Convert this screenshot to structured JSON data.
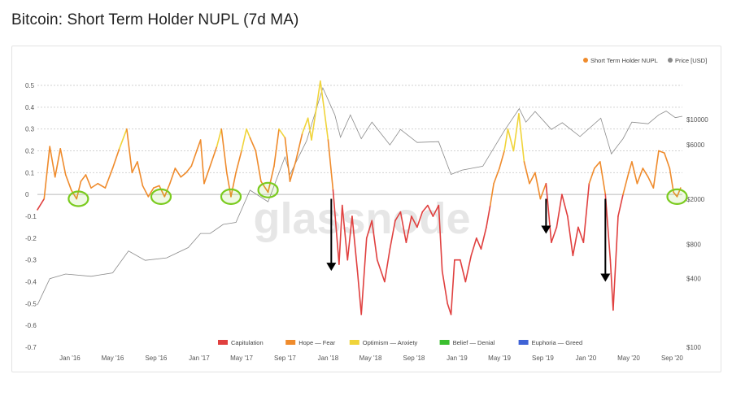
{
  "page": {
    "title": "Bitcoin: Short Term Holder NUPL (7d MA)"
  },
  "watermark": "glassnode",
  "colors": {
    "capitulation": "#e0403f",
    "hope_fear": "#ef8b2c",
    "optimism_anxiety": "#f0d43a",
    "belief_denial": "#3bbf2f",
    "euphoria_greed": "#3f63d6",
    "price": "#8a8a8a",
    "circle": "#7acb1e",
    "arrow": "#000000"
  },
  "chart_data": {
    "type": "line",
    "title": "Bitcoin: Short Term Holder NUPL (7d MA)",
    "x_tick_labels": [
      "Jan '16",
      "May '16",
      "Sep '16",
      "Jan '17",
      "May '17",
      "Sep '17",
      "Jan '18",
      "May '18",
      "Sep '18",
      "Jan '19",
      "May '19",
      "Sep '19",
      "Jan '20",
      "May '20",
      "Sep '20"
    ],
    "x_range": [
      "2015-10-01",
      "2020-09-30"
    ],
    "y_left": {
      "ticks": [
        "0.5",
        "0.4",
        "0.3",
        "0.2",
        "0.1",
        "0",
        "-0.1",
        "-0.2",
        "-0.3",
        "-0.4",
        "-0.5",
        "-0.6",
        "-0.7"
      ],
      "ylim": [
        -0.7,
        0.5
      ]
    },
    "y_right": {
      "scale": "log",
      "ticks": [
        "$10000",
        "$6000",
        "$2000",
        "$800",
        "$400",
        "$100"
      ],
      "unit": "Price [USD]",
      "ylim": [
        100,
        20000
      ]
    },
    "legend_top": [
      "Short Term Holder NUPL",
      "Price [USD]"
    ],
    "legend_bottom": [
      "Capitulation",
      "Hope — Fear",
      "Optimism — Anxiety",
      "Belief — Denial",
      "Euphoria — Greed"
    ],
    "series": [
      {
        "name": "Short Term Holder NUPL",
        "axis": "left",
        "points": [
          [
            "2015-10-01",
            -0.07
          ],
          [
            "2015-10-20",
            -0.02
          ],
          [
            "2015-11-05",
            0.22
          ],
          [
            "2015-11-20",
            0.08
          ],
          [
            "2015-12-05",
            0.21
          ],
          [
            "2015-12-20",
            0.09
          ],
          [
            "2016-01-05",
            0.02
          ],
          [
            "2016-01-20",
            -0.02
          ],
          [
            "2016-02-01",
            0.06
          ],
          [
            "2016-02-15",
            0.09
          ],
          [
            "2016-03-01",
            0.03
          ],
          [
            "2016-03-20",
            0.05
          ],
          [
            "2016-04-10",
            0.03
          ],
          [
            "2016-05-01",
            0.12
          ],
          [
            "2016-05-20",
            0.21
          ],
          [
            "2016-06-10",
            0.3
          ],
          [
            "2016-06-25",
            0.1
          ],
          [
            "2016-07-10",
            0.15
          ],
          [
            "2016-07-25",
            0.04
          ],
          [
            "2016-08-10",
            -0.01
          ],
          [
            "2016-08-25",
            0.03
          ],
          [
            "2016-09-10",
            0.04
          ],
          [
            "2016-09-25",
            -0.01
          ],
          [
            "2016-10-10",
            0.05
          ],
          [
            "2016-10-25",
            0.12
          ],
          [
            "2016-11-10",
            0.08
          ],
          [
            "2016-11-25",
            0.1
          ],
          [
            "2016-12-10",
            0.13
          ],
          [
            "2016-12-25",
            0.2
          ],
          [
            "2017-01-05",
            0.25
          ],
          [
            "2017-01-15",
            0.05
          ],
          [
            "2017-02-01",
            0.13
          ],
          [
            "2017-02-20",
            0.22
          ],
          [
            "2017-03-05",
            0.3
          ],
          [
            "2017-03-20",
            0.1
          ],
          [
            "2017-04-01",
            -0.01
          ],
          [
            "2017-04-15",
            0.1
          ],
          [
            "2017-05-01",
            0.2
          ],
          [
            "2017-05-15",
            0.3
          ],
          [
            "2017-05-25",
            0.26
          ],
          [
            "2017-06-10",
            0.2
          ],
          [
            "2017-06-25",
            0.06
          ],
          [
            "2017-07-15",
            0.01
          ],
          [
            "2017-08-01",
            0.13
          ],
          [
            "2017-08-15",
            0.3
          ],
          [
            "2017-09-01",
            0.26
          ],
          [
            "2017-09-15",
            0.06
          ],
          [
            "2017-10-01",
            0.15
          ],
          [
            "2017-10-20",
            0.28
          ],
          [
            "2017-11-05",
            0.35
          ],
          [
            "2017-11-15",
            0.25
          ],
          [
            "2017-12-01",
            0.42
          ],
          [
            "2017-12-10",
            0.52
          ],
          [
            "2017-12-20",
            0.4
          ],
          [
            "2018-01-01",
            0.25
          ],
          [
            "2018-01-15",
            0.02
          ],
          [
            "2018-02-01",
            -0.32
          ],
          [
            "2018-02-10",
            -0.05
          ],
          [
            "2018-02-25",
            -0.3
          ],
          [
            "2018-03-10",
            -0.1
          ],
          [
            "2018-03-25",
            -0.35
          ],
          [
            "2018-04-05",
            -0.55
          ],
          [
            "2018-04-20",
            -0.2
          ],
          [
            "2018-05-05",
            -0.12
          ],
          [
            "2018-05-20",
            -0.3
          ],
          [
            "2018-06-10",
            -0.4
          ],
          [
            "2018-06-25",
            -0.25
          ],
          [
            "2018-07-10",
            -0.12
          ],
          [
            "2018-07-25",
            -0.08
          ],
          [
            "2018-08-10",
            -0.22
          ],
          [
            "2018-08-25",
            -0.1
          ],
          [
            "2018-09-10",
            -0.15
          ],
          [
            "2018-09-25",
            -0.08
          ],
          [
            "2018-10-10",
            -0.05
          ],
          [
            "2018-10-25",
            -0.1
          ],
          [
            "2018-11-10",
            -0.05
          ],
          [
            "2018-11-20",
            -0.35
          ],
          [
            "2018-12-05",
            -0.5
          ],
          [
            "2018-12-15",
            -0.55
          ],
          [
            "2018-12-25",
            -0.3
          ],
          [
            "2019-01-10",
            -0.3
          ],
          [
            "2019-01-25",
            -0.4
          ],
          [
            "2019-02-10",
            -0.28
          ],
          [
            "2019-02-25",
            -0.2
          ],
          [
            "2019-03-10",
            -0.25
          ],
          [
            "2019-03-25",
            -0.15
          ],
          [
            "2019-04-05",
            -0.05
          ],
          [
            "2019-04-15",
            0.05
          ],
          [
            "2019-05-01",
            0.12
          ],
          [
            "2019-05-15",
            0.2
          ],
          [
            "2019-05-25",
            0.3
          ],
          [
            "2019-06-10",
            0.2
          ],
          [
            "2019-06-25",
            0.37
          ],
          [
            "2019-07-10",
            0.15
          ],
          [
            "2019-07-25",
            0.05
          ],
          [
            "2019-08-10",
            0.1
          ],
          [
            "2019-08-25",
            -0.02
          ],
          [
            "2019-09-10",
            0.05
          ],
          [
            "2019-09-25",
            -0.22
          ],
          [
            "2019-10-10",
            -0.15
          ],
          [
            "2019-10-25",
            0.0
          ],
          [
            "2019-11-10",
            -0.1
          ],
          [
            "2019-11-25",
            -0.28
          ],
          [
            "2019-12-10",
            -0.15
          ],
          [
            "2019-12-25",
            -0.22
          ],
          [
            "2020-01-10",
            0.05
          ],
          [
            "2020-01-25",
            0.12
          ],
          [
            "2020-02-10",
            0.15
          ],
          [
            "2020-02-25",
            0.0
          ],
          [
            "2020-03-10",
            -0.3
          ],
          [
            "2020-03-18",
            -0.53
          ],
          [
            "2020-04-01",
            -0.1
          ],
          [
            "2020-04-15",
            0.0
          ],
          [
            "2020-05-01",
            0.1
          ],
          [
            "2020-05-10",
            0.15
          ],
          [
            "2020-05-25",
            0.05
          ],
          [
            "2020-06-10",
            0.12
          ],
          [
            "2020-06-25",
            0.08
          ],
          [
            "2020-07-10",
            0.03
          ],
          [
            "2020-07-25",
            0.2
          ],
          [
            "2020-08-10",
            0.19
          ],
          [
            "2020-08-25",
            0.12
          ],
          [
            "2020-09-05",
            0.01
          ],
          [
            "2020-09-15",
            -0.01
          ],
          [
            "2020-09-25",
            0.03
          ]
        ]
      },
      {
        "name": "Price [USD]",
        "axis": "right",
        "points": [
          [
            "2015-10-01",
            235
          ],
          [
            "2015-11-05",
            400
          ],
          [
            "2015-12-20",
            440
          ],
          [
            "2016-03-01",
            420
          ],
          [
            "2016-05-01",
            450
          ],
          [
            "2016-06-15",
            700
          ],
          [
            "2016-08-01",
            580
          ],
          [
            "2016-10-01",
            610
          ],
          [
            "2016-12-01",
            750
          ],
          [
            "2017-01-05",
            1000
          ],
          [
            "2017-02-01",
            1000
          ],
          [
            "2017-03-10",
            1200
          ],
          [
            "2017-04-15",
            1250
          ],
          [
            "2017-05-25",
            2400
          ],
          [
            "2017-07-15",
            1900
          ],
          [
            "2017-09-01",
            4700
          ],
          [
            "2017-09-15",
            3300
          ],
          [
            "2017-11-01",
            6500
          ],
          [
            "2017-12-17",
            19000
          ],
          [
            "2018-01-20",
            11000
          ],
          [
            "2018-02-05",
            7000
          ],
          [
            "2018-03-05",
            11000
          ],
          [
            "2018-04-05",
            6800
          ],
          [
            "2018-05-05",
            9500
          ],
          [
            "2018-06-25",
            6000
          ],
          [
            "2018-07-25",
            8200
          ],
          [
            "2018-09-10",
            6300
          ],
          [
            "2018-11-10",
            6400
          ],
          [
            "2018-12-15",
            3300
          ],
          [
            "2019-01-15",
            3600
          ],
          [
            "2019-03-15",
            3900
          ],
          [
            "2019-05-15",
            8000
          ],
          [
            "2019-06-26",
            12500
          ],
          [
            "2019-07-15",
            9500
          ],
          [
            "2019-08-10",
            11800
          ],
          [
            "2019-09-25",
            8200
          ],
          [
            "2019-10-26",
            9400
          ],
          [
            "2019-12-15",
            7100
          ],
          [
            "2020-02-12",
            10300
          ],
          [
            "2020-03-13",
            5000
          ],
          [
            "2020-04-15",
            6800
          ],
          [
            "2020-05-10",
            9500
          ],
          [
            "2020-06-25",
            9200
          ],
          [
            "2020-07-25",
            11000
          ],
          [
            "2020-08-15",
            11900
          ],
          [
            "2020-09-10",
            10400
          ],
          [
            "2020-09-30",
            10700
          ]
        ]
      }
    ],
    "zones": [
      {
        "name": "Capitulation",
        "range": [
          -1,
          0
        ]
      },
      {
        "name": "Hope — Fear",
        "range": [
          0,
          0.25
        ]
      },
      {
        "name": "Optimism — Anxiety",
        "range": [
          0.25,
          0.5
        ]
      },
      {
        "name": "Belief — Denial",
        "range": [
          0.5,
          0.75
        ]
      },
      {
        "name": "Euphoria — Greed",
        "range": [
          0.75,
          1
        ]
      }
    ],
    "annotations": {
      "circles": [
        {
          "date": "2016-01-25",
          "value": -0.02
        },
        {
          "date": "2016-09-15",
          "value": -0.01
        },
        {
          "date": "2017-04-01",
          "value": -0.01
        },
        {
          "date": "2017-07-15",
          "value": 0.02
        },
        {
          "date": "2020-09-15",
          "value": -0.01
        }
      ],
      "down_arrows": [
        {
          "date": "2018-01-10",
          "from": -0.02,
          "to": -0.35
        },
        {
          "date": "2019-09-10",
          "from": -0.02,
          "to": -0.18
        },
        {
          "date": "2020-02-25",
          "from": -0.02,
          "to": -0.4
        }
      ]
    },
    "grid": "horizontal",
    "legend_position": "top-right and bottom-center"
  }
}
